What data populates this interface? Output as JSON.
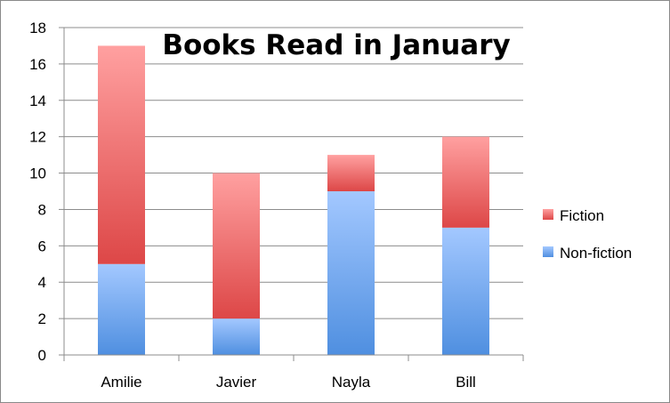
{
  "chart_data": {
    "type": "bar",
    "stacked": true,
    "title": "Books Read in January",
    "xlabel": "",
    "ylabel": "",
    "categories": [
      "Amilie",
      "Javier",
      "Nayla",
      "Bill"
    ],
    "series": [
      {
        "name": "Non-fiction",
        "values": [
          5,
          2,
          9,
          7
        ],
        "color": "#4f8fe0",
        "color_light": "#a3c8ff"
      },
      {
        "name": "Fiction",
        "values": [
          12,
          8,
          2,
          5
        ],
        "color": "#dd4747",
        "color_light": "#ffa0a0"
      }
    ],
    "ylim": [
      0,
      18
    ],
    "yticks": [
      "0",
      "2",
      "4",
      "6",
      "8",
      "10",
      "12",
      "14",
      "16",
      "18"
    ],
    "grid": true,
    "legend": "right",
    "legend_order": [
      "Fiction",
      "Non-fiction"
    ]
  }
}
